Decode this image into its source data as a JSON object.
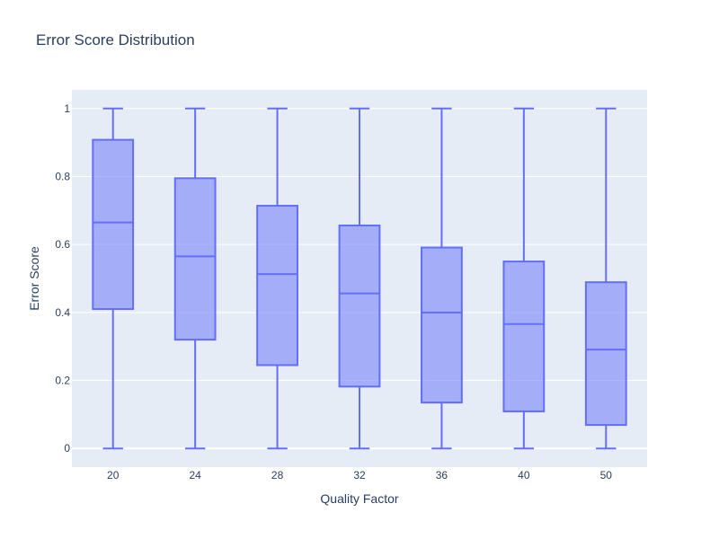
{
  "chart_data": {
    "type": "box",
    "title": "Error Score Distribution",
    "xlabel": "Quality Factor",
    "ylabel": "Error Score",
    "categories": [
      "20",
      "24",
      "28",
      "32",
      "36",
      "40",
      "50"
    ],
    "ylim": [
      -0.055,
      1.055
    ],
    "yticks": [
      0,
      0.2,
      0.4,
      0.6,
      0.8,
      1
    ],
    "ytick_labels": [
      "0",
      "0.2",
      "0.4",
      "0.6",
      "0.8",
      "1"
    ],
    "grid": true,
    "boxes": [
      {
        "category": "20",
        "min": 0,
        "q1": 0.41,
        "median": 0.665,
        "q3": 0.908,
        "max": 1
      },
      {
        "category": "24",
        "min": 0,
        "q1": 0.32,
        "median": 0.565,
        "q3": 0.795,
        "max": 1
      },
      {
        "category": "28",
        "min": 0,
        "q1": 0.245,
        "median": 0.513,
        "q3": 0.714,
        "max": 1
      },
      {
        "category": "32",
        "min": 0,
        "q1": 0.182,
        "median": 0.456,
        "q3": 0.656,
        "max": 1
      },
      {
        "category": "36",
        "min": 0,
        "q1": 0.135,
        "median": 0.4,
        "q3": 0.591,
        "max": 1
      },
      {
        "category": "40",
        "min": 0,
        "q1": 0.109,
        "median": 0.366,
        "q3": 0.55,
        "max": 1
      },
      {
        "category": "50",
        "min": 0,
        "q1": 0.069,
        "median": 0.291,
        "q3": 0.489,
        "max": 1
      }
    ],
    "colors": {
      "plot_background": "#e5ecf6",
      "grid": "#ffffff",
      "box_line": "#636efa",
      "box_fill": "rgba(99,110,250,0.5)",
      "text": "#2a3f5f"
    }
  }
}
